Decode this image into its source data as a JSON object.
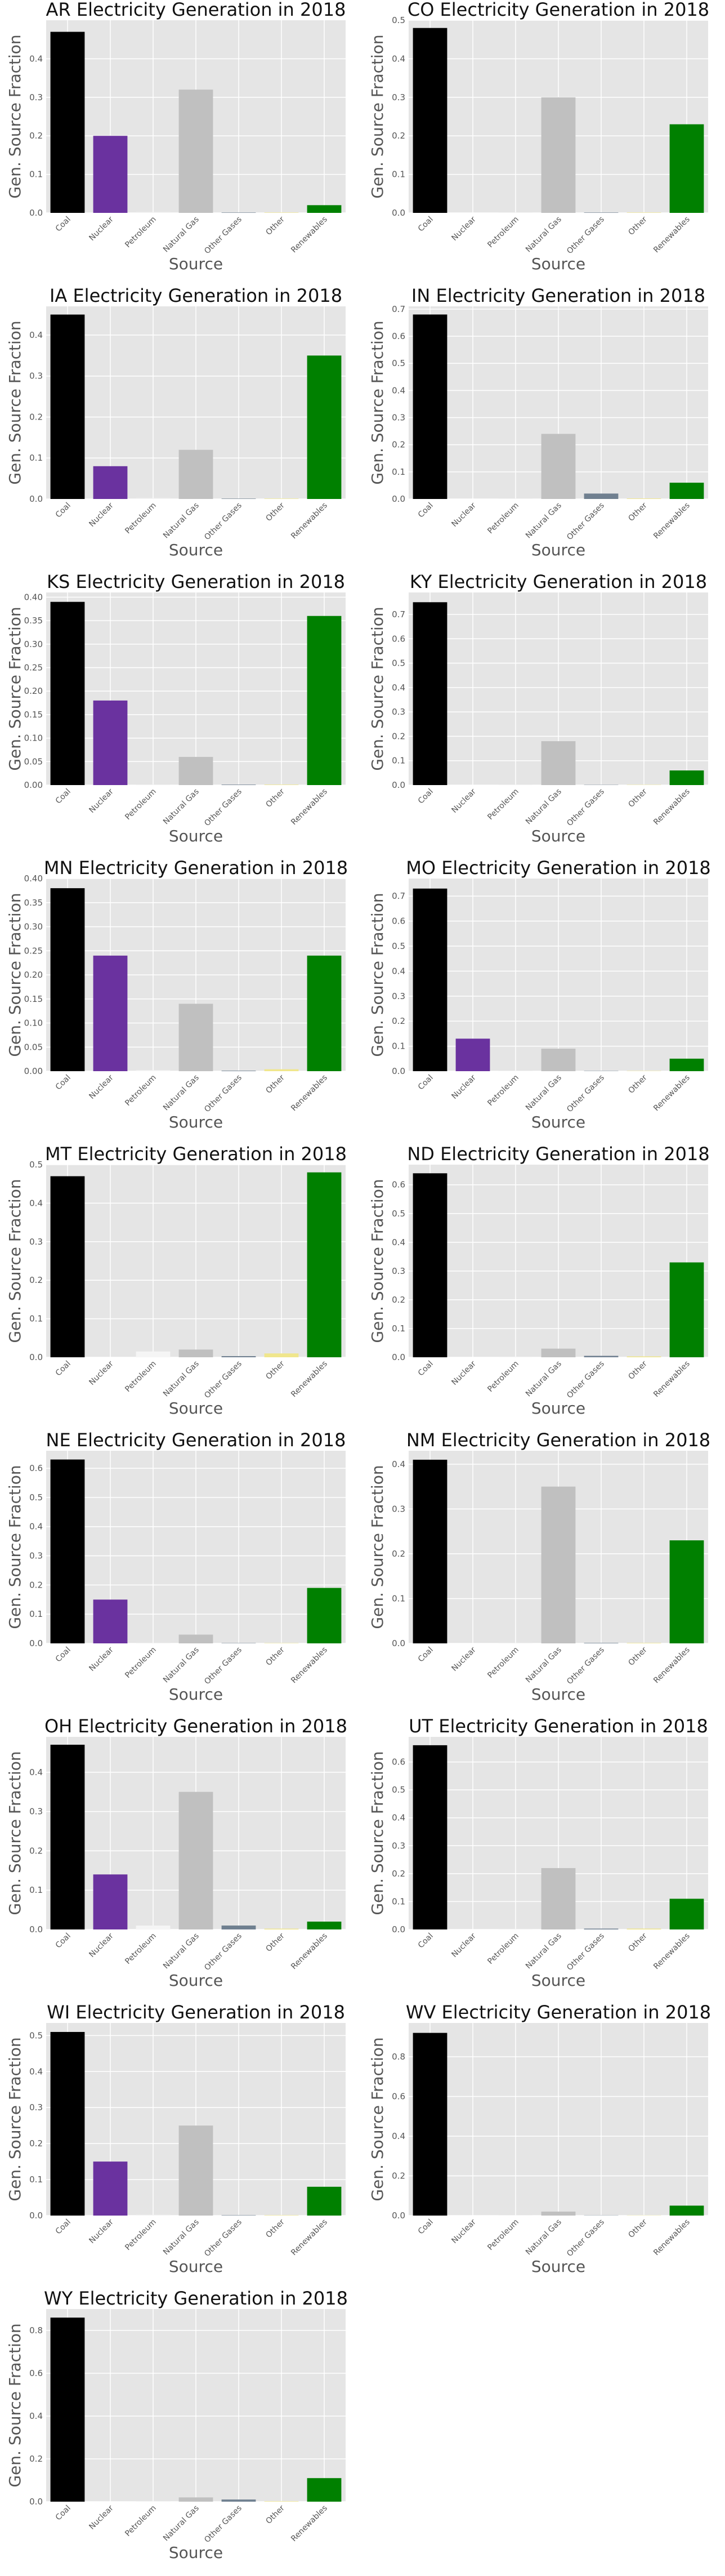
{
  "categories": [
    "Coal",
    "Nuclear",
    "Petroleum",
    "Natural Gas",
    "Other Gases",
    "Other",
    "Renewables"
  ],
  "colors": [
    "#000000",
    "#6a329f",
    "#f5f5f5",
    "#c0c0c0",
    "#708090",
    "#f0e68c",
    "#008000"
  ],
  "chart_data": [
    {
      "type": "bar",
      "title": "AR Electricity Generation in 2018",
      "xlabel": "Source",
      "ylabel": "Gen. Source Fraction",
      "categories": [
        "Coal",
        "Nuclear",
        "Petroleum",
        "Natural Gas",
        "Other Gases",
        "Other",
        "Renewables"
      ],
      "values": [
        0.47,
        0.2,
        0.002,
        0.32,
        0.001,
        0.001,
        0.02
      ],
      "ylim": [
        0,
        0.5
      ],
      "yticks": [
        "0.0",
        "0.1",
        "0.2",
        "0.3",
        "0.4"
      ],
      "ytick_values": [
        0,
        0.1,
        0.2,
        0.3,
        0.4
      ]
    },
    {
      "type": "bar",
      "title": "CO Electricity Generation in 2018",
      "xlabel": "Source",
      "ylabel": "Gen. Source Fraction",
      "categories": [
        "Coal",
        "Nuclear",
        "Petroleum",
        "Natural Gas",
        "Other Gases",
        "Other",
        "Renewables"
      ],
      "values": [
        0.48,
        0.0,
        0.001,
        0.3,
        0.001,
        0.001,
        0.23
      ],
      "ylim": [
        0,
        0.5
      ],
      "yticks": [
        "0.0",
        "0.1",
        "0.2",
        "0.3",
        "0.4",
        "0.5"
      ],
      "ytick_values": [
        0,
        0.1,
        0.2,
        0.3,
        0.4,
        0.5
      ]
    },
    {
      "type": "bar",
      "title": "IA Electricity Generation in 2018",
      "xlabel": "Source",
      "ylabel": "Gen. Source Fraction",
      "categories": [
        "Coal",
        "Nuclear",
        "Petroleum",
        "Natural Gas",
        "Other Gases",
        "Other",
        "Renewables"
      ],
      "values": [
        0.45,
        0.08,
        0.002,
        0.12,
        0.001,
        0.001,
        0.35
      ],
      "ylim": [
        0,
        0.47
      ],
      "yticks": [
        "0.0",
        "0.1",
        "0.2",
        "0.3",
        "0.4"
      ],
      "ytick_values": [
        0,
        0.1,
        0.2,
        0.3,
        0.4
      ]
    },
    {
      "type": "bar",
      "title": "IN Electricity Generation in 2018",
      "xlabel": "Source",
      "ylabel": "Gen. Source Fraction",
      "categories": [
        "Coal",
        "Nuclear",
        "Petroleum",
        "Natural Gas",
        "Other Gases",
        "Other",
        "Renewables"
      ],
      "values": [
        0.68,
        0.0,
        0.002,
        0.24,
        0.02,
        0.002,
        0.06
      ],
      "ylim": [
        0,
        0.71
      ],
      "yticks": [
        "0.0",
        "0.1",
        "0.2",
        "0.3",
        "0.4",
        "0.5",
        "0.6",
        "0.7"
      ],
      "ytick_values": [
        0,
        0.1,
        0.2,
        0.3,
        0.4,
        0.5,
        0.6,
        0.7
      ]
    },
    {
      "type": "bar",
      "title": "KS Electricity Generation in 2018",
      "xlabel": "Source",
      "ylabel": "Gen. Source Fraction",
      "categories": [
        "Coal",
        "Nuclear",
        "Petroleum",
        "Natural Gas",
        "Other Gases",
        "Other",
        "Renewables"
      ],
      "values": [
        0.39,
        0.18,
        0.001,
        0.06,
        0.001,
        0.001,
        0.36
      ],
      "ylim": [
        0,
        0.41
      ],
      "yticks": [
        "0.00",
        "0.05",
        "0.10",
        "0.15",
        "0.20",
        "0.25",
        "0.30",
        "0.35",
        "0.40"
      ],
      "ytick_values": [
        0,
        0.05,
        0.1,
        0.15,
        0.2,
        0.25,
        0.3,
        0.35,
        0.4
      ]
    },
    {
      "type": "bar",
      "title": "KY Electricity Generation in 2018",
      "xlabel": "Source",
      "ylabel": "Gen. Source Fraction",
      "categories": [
        "Coal",
        "Nuclear",
        "Petroleum",
        "Natural Gas",
        "Other Gases",
        "Other",
        "Renewables"
      ],
      "values": [
        0.75,
        0.0,
        0.002,
        0.18,
        0.001,
        0.001,
        0.06
      ],
      "ylim": [
        0,
        0.79
      ],
      "yticks": [
        "0.0",
        "0.1",
        "0.2",
        "0.3",
        "0.4",
        "0.5",
        "0.6",
        "0.7"
      ],
      "ytick_values": [
        0,
        0.1,
        0.2,
        0.3,
        0.4,
        0.5,
        0.6,
        0.7
      ]
    },
    {
      "type": "bar",
      "title": "MN Electricity Generation in 2018",
      "xlabel": "Source",
      "ylabel": "Gen. Source Fraction",
      "categories": [
        "Coal",
        "Nuclear",
        "Petroleum",
        "Natural Gas",
        "Other Gases",
        "Other",
        "Renewables"
      ],
      "values": [
        0.38,
        0.24,
        0.002,
        0.14,
        0.001,
        0.004,
        0.24
      ],
      "ylim": [
        0,
        0.4
      ],
      "yticks": [
        "0.00",
        "0.05",
        "0.10",
        "0.15",
        "0.20",
        "0.25",
        "0.30",
        "0.35",
        "0.40"
      ],
      "ytick_values": [
        0,
        0.05,
        0.1,
        0.15,
        0.2,
        0.25,
        0.3,
        0.35,
        0.4
      ]
    },
    {
      "type": "bar",
      "title": "MO Electricity Generation in 2018",
      "xlabel": "Source",
      "ylabel": "Gen. Source Fraction",
      "categories": [
        "Coal",
        "Nuclear",
        "Petroleum",
        "Natural Gas",
        "Other Gases",
        "Other",
        "Renewables"
      ],
      "values": [
        0.73,
        0.13,
        0.002,
        0.09,
        0.001,
        0.001,
        0.05
      ],
      "ylim": [
        0,
        0.77
      ],
      "yticks": [
        "0.0",
        "0.1",
        "0.2",
        "0.3",
        "0.4",
        "0.5",
        "0.6",
        "0.7"
      ],
      "ytick_values": [
        0,
        0.1,
        0.2,
        0.3,
        0.4,
        0.5,
        0.6,
        0.7
      ]
    },
    {
      "type": "bar",
      "title": "MT Electricity Generation in 2018",
      "xlabel": "Source",
      "ylabel": "Gen. Source Fraction",
      "categories": [
        "Coal",
        "Nuclear",
        "Petroleum",
        "Natural Gas",
        "Other Gases",
        "Other",
        "Renewables"
      ],
      "values": [
        0.47,
        0.0,
        0.015,
        0.02,
        0.003,
        0.01,
        0.48
      ],
      "ylim": [
        0,
        0.5
      ],
      "yticks": [
        "0.0",
        "0.1",
        "0.2",
        "0.3",
        "0.4",
        "0.5"
      ],
      "ytick_values": [
        0,
        0.1,
        0.2,
        0.3,
        0.4,
        0.5
      ]
    },
    {
      "type": "bar",
      "title": "ND Electricity Generation in 2018",
      "xlabel": "Source",
      "ylabel": "Gen. Source Fraction",
      "categories": [
        "Coal",
        "Nuclear",
        "Petroleum",
        "Natural Gas",
        "Other Gases",
        "Other",
        "Renewables"
      ],
      "values": [
        0.64,
        0.0,
        0.002,
        0.03,
        0.005,
        0.003,
        0.33
      ],
      "ylim": [
        0,
        0.67
      ],
      "yticks": [
        "0.0",
        "0.1",
        "0.2",
        "0.3",
        "0.4",
        "0.5",
        "0.6"
      ],
      "ytick_values": [
        0,
        0.1,
        0.2,
        0.3,
        0.4,
        0.5,
        0.6
      ]
    },
    {
      "type": "bar",
      "title": "NE Electricity Generation in 2018",
      "xlabel": "Source",
      "ylabel": "Gen. Source Fraction",
      "categories": [
        "Coal",
        "Nuclear",
        "Petroleum",
        "Natural Gas",
        "Other Gases",
        "Other",
        "Renewables"
      ],
      "values": [
        0.63,
        0.15,
        0.001,
        0.03,
        0.001,
        0.001,
        0.19
      ],
      "ylim": [
        0,
        0.66
      ],
      "yticks": [
        "0.0",
        "0.1",
        "0.2",
        "0.3",
        "0.4",
        "0.5",
        "0.6"
      ],
      "ytick_values": [
        0,
        0.1,
        0.2,
        0.3,
        0.4,
        0.5,
        0.6
      ]
    },
    {
      "type": "bar",
      "title": "NM Electricity Generation in 2018",
      "xlabel": "Source",
      "ylabel": "Gen. Source Fraction",
      "categories": [
        "Coal",
        "Nuclear",
        "Petroleum",
        "Natural Gas",
        "Other Gases",
        "Other",
        "Renewables"
      ],
      "values": [
        0.41,
        0.0,
        0.001,
        0.35,
        0.001,
        0.001,
        0.23
      ],
      "ylim": [
        0,
        0.43
      ],
      "yticks": [
        "0.0",
        "0.1",
        "0.2",
        "0.3",
        "0.4"
      ],
      "ytick_values": [
        0,
        0.1,
        0.2,
        0.3,
        0.4
      ]
    },
    {
      "type": "bar",
      "title": "OH Electricity Generation in 2018",
      "xlabel": "Source",
      "ylabel": "Gen. Source Fraction",
      "categories": [
        "Coal",
        "Nuclear",
        "Petroleum",
        "Natural Gas",
        "Other Gases",
        "Other",
        "Renewables"
      ],
      "values": [
        0.47,
        0.14,
        0.01,
        0.35,
        0.01,
        0.002,
        0.02
      ],
      "ylim": [
        0,
        0.49
      ],
      "yticks": [
        "0.0",
        "0.1",
        "0.2",
        "0.3",
        "0.4"
      ],
      "ytick_values": [
        0,
        0.1,
        0.2,
        0.3,
        0.4
      ]
    },
    {
      "type": "bar",
      "title": "UT Electricity Generation in 2018",
      "xlabel": "Source",
      "ylabel": "Gen. Source Fraction",
      "categories": [
        "Coal",
        "Nuclear",
        "Petroleum",
        "Natural Gas",
        "Other Gases",
        "Other",
        "Renewables"
      ],
      "values": [
        0.66,
        0.0,
        0.002,
        0.22,
        0.003,
        0.003,
        0.11
      ],
      "ylim": [
        0,
        0.69
      ],
      "yticks": [
        "0.0",
        "0.1",
        "0.2",
        "0.3",
        "0.4",
        "0.5",
        "0.6"
      ],
      "ytick_values": [
        0,
        0.1,
        0.2,
        0.3,
        0.4,
        0.5,
        0.6
      ]
    },
    {
      "type": "bar",
      "title": "WI Electricity Generation in 2018",
      "xlabel": "Source",
      "ylabel": "Gen. Source Fraction",
      "categories": [
        "Coal",
        "Nuclear",
        "Petroleum",
        "Natural Gas",
        "Other Gases",
        "Other",
        "Renewables"
      ],
      "values": [
        0.51,
        0.15,
        0.002,
        0.25,
        0.001,
        0.001,
        0.08
      ],
      "ylim": [
        0,
        0.535
      ],
      "yticks": [
        "0.0",
        "0.1",
        "0.2",
        "0.3",
        "0.4",
        "0.5"
      ],
      "ytick_values": [
        0,
        0.1,
        0.2,
        0.3,
        0.4,
        0.5
      ]
    },
    {
      "type": "bar",
      "title": "WV Electricity Generation in 2018",
      "xlabel": "Source",
      "ylabel": "Gen. Source Fraction",
      "categories": [
        "Coal",
        "Nuclear",
        "Petroleum",
        "Natural Gas",
        "Other Gases",
        "Other",
        "Renewables"
      ],
      "values": [
        0.92,
        0.0,
        0.002,
        0.02,
        0.001,
        0.001,
        0.05
      ],
      "ylim": [
        0,
        0.97
      ],
      "yticks": [
        "0.0",
        "0.2",
        "0.4",
        "0.6",
        "0.8"
      ],
      "ytick_values": [
        0,
        0.2,
        0.4,
        0.6,
        0.8
      ]
    },
    {
      "type": "bar",
      "title": "WY Electricity Generation in 2018",
      "xlabel": "Source",
      "ylabel": "Gen. Source Fraction",
      "categories": [
        "Coal",
        "Nuclear",
        "Petroleum",
        "Natural Gas",
        "Other Gases",
        "Other",
        "Renewables"
      ],
      "values": [
        0.86,
        0.0,
        0.002,
        0.02,
        0.01,
        0.002,
        0.11
      ],
      "ylim": [
        0,
        0.9
      ],
      "yticks": [
        "0.0",
        "0.2",
        "0.4",
        "0.6",
        "0.8"
      ],
      "ytick_values": [
        0,
        0.2,
        0.4,
        0.6,
        0.8
      ]
    }
  ]
}
